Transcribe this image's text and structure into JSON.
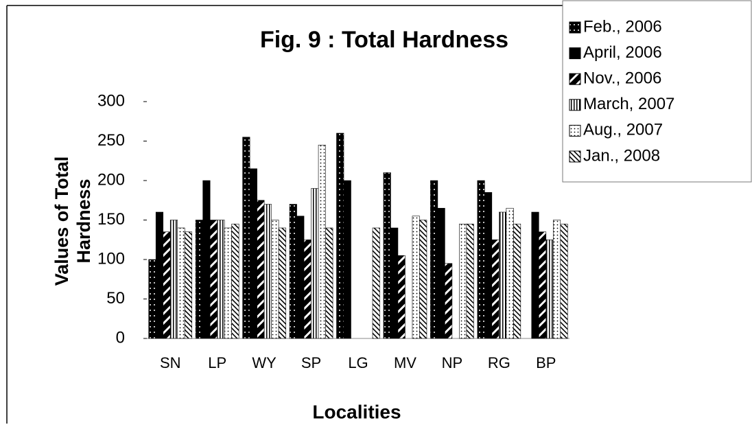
{
  "chart_data": {
    "type": "bar",
    "title": "Fig. 9 : Total Hardness",
    "xlabel": "Localities",
    "ylabel": [
      "Values of Total",
      "Hardness"
    ],
    "categories": [
      "SN",
      "LP",
      "WY",
      "SP",
      "LG",
      "MV",
      "NP",
      "RG",
      "BP"
    ],
    "series": [
      {
        "name": "Feb., 2006",
        "color": "#000000",
        "pattern": "white-dots",
        "values": [
          100,
          150,
          255,
          170,
          260,
          210,
          200,
          200,
          null
        ]
      },
      {
        "name": "April, 2006",
        "color": "#000000",
        "pattern": "solid",
        "values": [
          160,
          200,
          215,
          155,
          200,
          140,
          165,
          185,
          160
        ]
      },
      {
        "name": "Nov., 2006",
        "color": "#000000",
        "pattern": "diagonal-white",
        "values": [
          135,
          150,
          175,
          125,
          null,
          105,
          95,
          125,
          135
        ]
      },
      {
        "name": "March, 2007",
        "color": "#000000",
        "pattern": "vertical",
        "values": [
          150,
          150,
          170,
          190,
          null,
          null,
          null,
          160,
          125
        ]
      },
      {
        "name": "Aug., 2007",
        "color": "#000000",
        "pattern": "black-dots",
        "values": [
          140,
          140,
          150,
          245,
          null,
          155,
          145,
          165,
          150
        ]
      },
      {
        "name": "Jan., 2008",
        "color": "#000000",
        "pattern": "hatch",
        "values": [
          135,
          145,
          140,
          140,
          140,
          150,
          145,
          145,
          145
        ]
      }
    ],
    "ylim": [
      0,
      300
    ],
    "yticks": [
      0,
      50,
      100,
      150,
      200,
      250,
      300
    ],
    "legend": "top-right"
  }
}
